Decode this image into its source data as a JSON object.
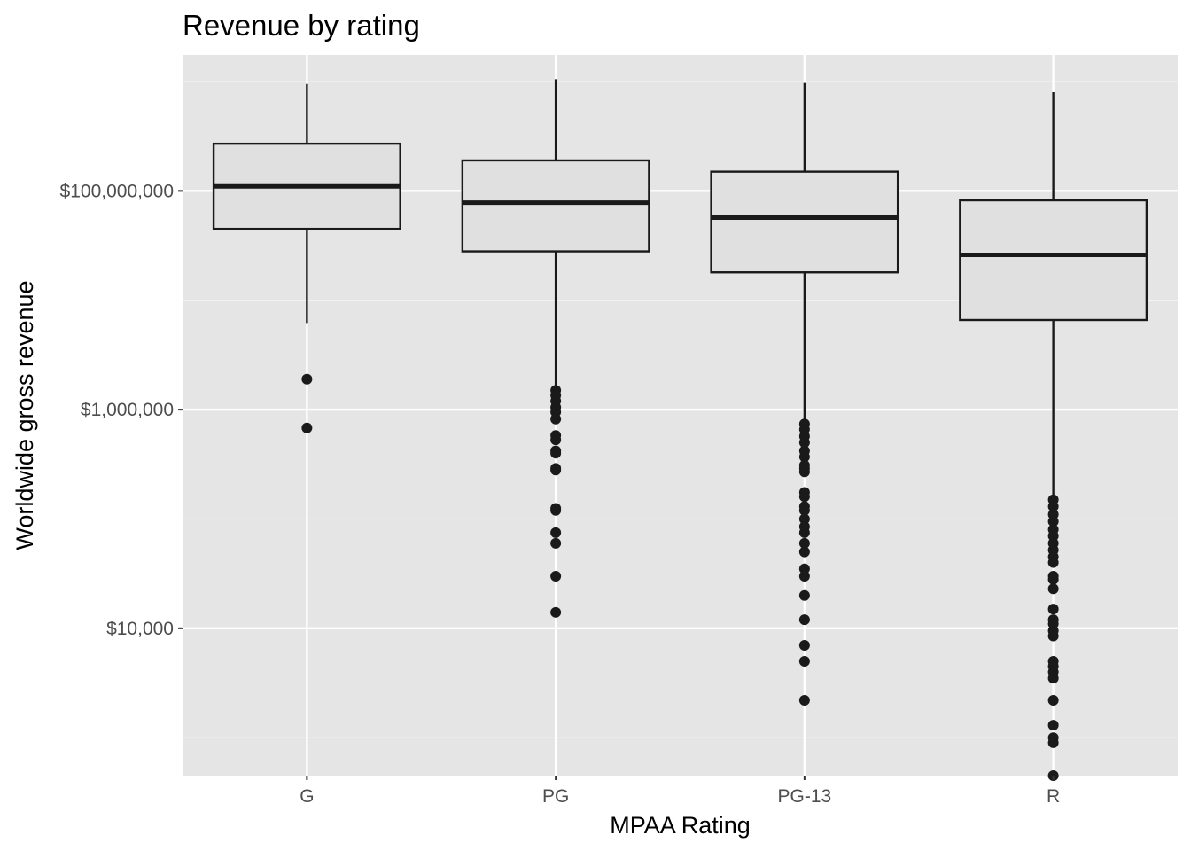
{
  "chart_data": {
    "type": "box",
    "title": "Revenue by rating",
    "xlabel": "MPAA Rating",
    "ylabel": "Worldwide gross revenue",
    "y_scale": "log10",
    "ylim": [
      450,
      1750000000
    ],
    "y_ticks": [
      {
        "value": 10000,
        "label": "$10,000"
      },
      {
        "value": 1000000,
        "label": "$1,000,000"
      },
      {
        "value": 100000000,
        "label": "$100,000,000"
      }
    ],
    "y_minor_ticks": [
      1000,
      100000,
      10000000,
      1000000000
    ],
    "grid": true,
    "legend": "none",
    "categories": [
      "G",
      "PG",
      "PG-13",
      "R"
    ],
    "boxes": [
      {
        "category": "G",
        "min": 6200000,
        "q1": 45000000,
        "median": 110000000,
        "q3": 270000000,
        "max": 950000000,
        "outliers": [
          1900000,
          680000
        ]
      },
      {
        "category": "PG",
        "min": 1500000,
        "q1": 28000000,
        "median": 78000000,
        "q3": 190000000,
        "max": 1050000000,
        "outliers": [
          1500000,
          1350000,
          1200000,
          1050000,
          950000,
          820000,
          580000,
          530000,
          420000,
          400000,
          290000,
          280000,
          120000,
          125000,
          75000,
          60000,
          30000,
          14000
        ]
      },
      {
        "category": "PG-13",
        "min": 750000,
        "q1": 18000000,
        "median": 57000000,
        "q3": 150000000,
        "max": 970000000,
        "outliers": [
          740000,
          660000,
          570000,
          500000,
          420000,
          370000,
          310000,
          290000,
          270000,
          175000,
          160000,
          130000,
          120000,
          100000,
          85000,
          75000,
          60000,
          50000,
          35000,
          30000,
          20000,
          12000,
          7000,
          5000,
          2200
        ]
      },
      {
        "category": "R",
        "min": 150000,
        "q1": 6600000,
        "median": 26000000,
        "q3": 82000000,
        "max": 800000000,
        "outliers": [
          150000,
          130000,
          110000,
          95000,
          80000,
          70000,
          60000,
          52000,
          45000,
          40000,
          30000,
          28000,
          23000,
          15000,
          12000,
          11000,
          9500,
          8500,
          5000,
          4500,
          4000,
          3500,
          2200,
          1300,
          1000,
          900,
          450
        ]
      }
    ]
  }
}
